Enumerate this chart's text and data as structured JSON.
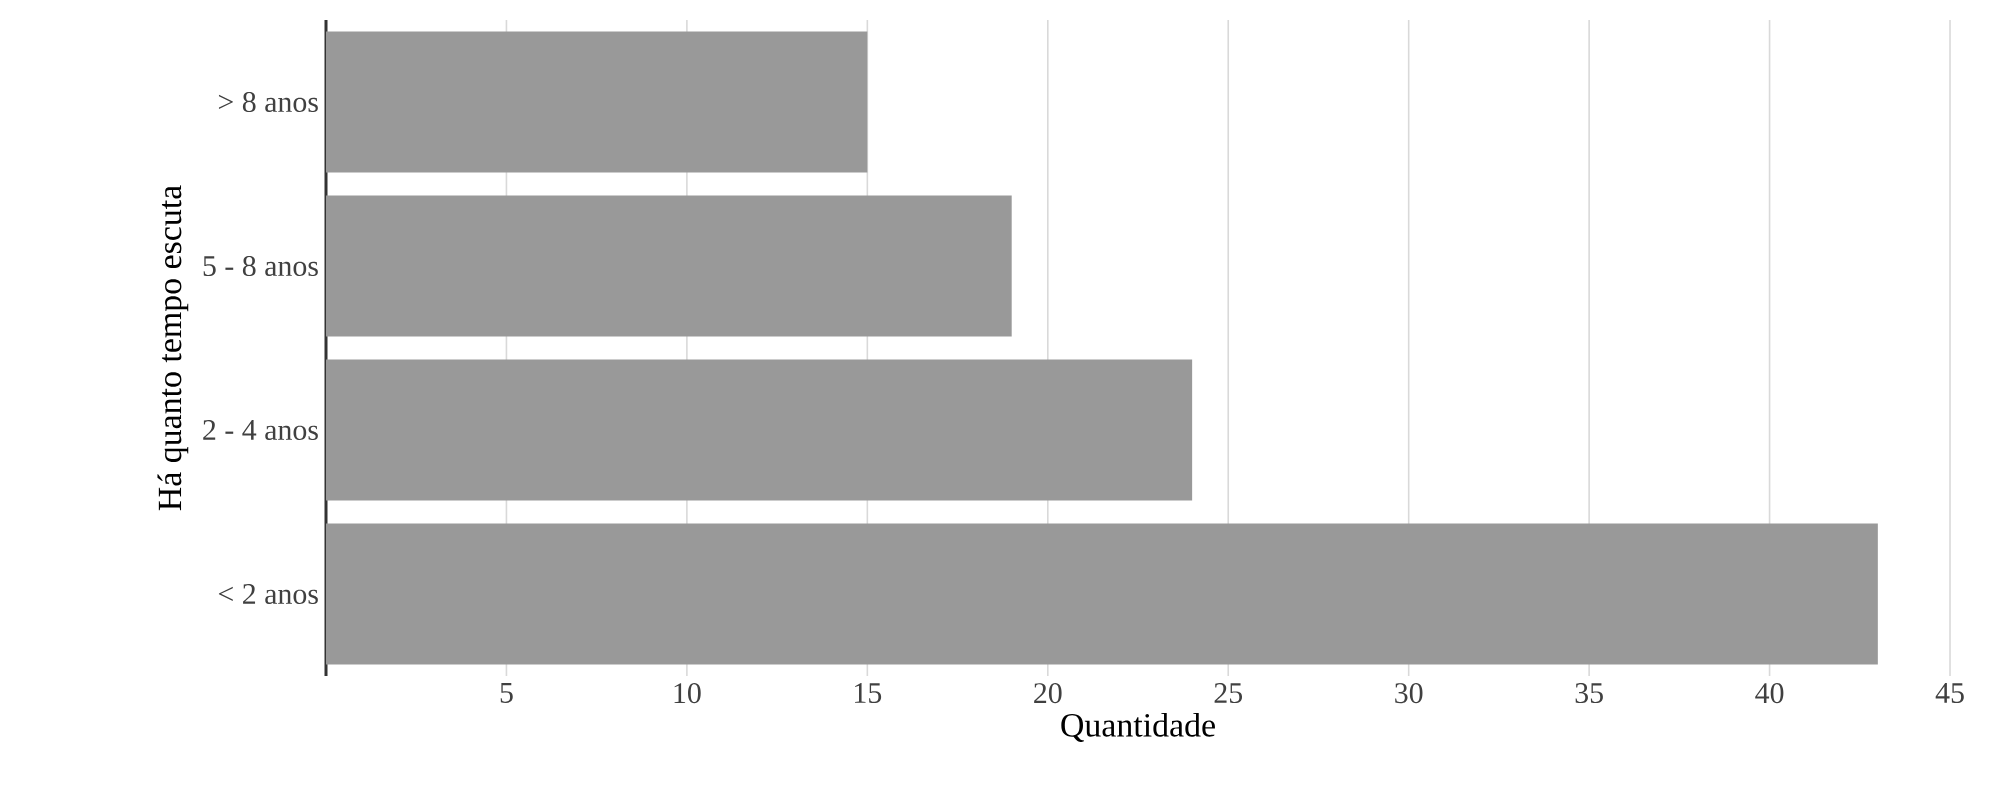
{
  "chart_data": {
    "type": "bar",
    "orientation": "horizontal",
    "xlabel": "Quantidade",
    "ylabel": "Há quanto tempo escuta",
    "categories": [
      "> 8 anos",
      "5 - 8 anos",
      "2 - 4 anos",
      "< 2 anos"
    ],
    "values": [
      15,
      19,
      24,
      43
    ],
    "color": "#999999",
    "xlim": [
      0,
      45
    ],
    "xticks": [
      5,
      10,
      15,
      20,
      25,
      30,
      35,
      40,
      45
    ],
    "grid": "x"
  }
}
